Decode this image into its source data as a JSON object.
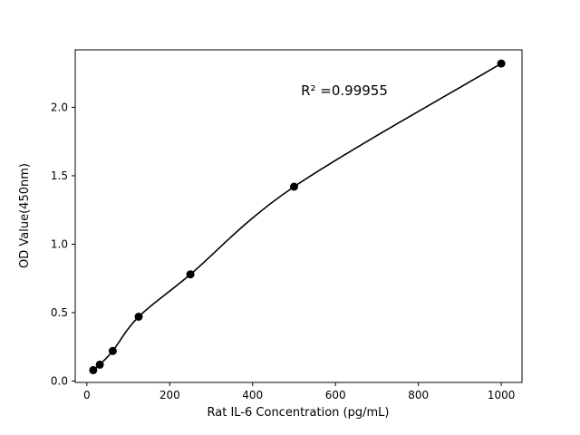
{
  "chart_data": {
    "type": "scatter",
    "title": "",
    "xlabel": "Rat IL-6 Concentration (pg/mL)",
    "ylabel": "OD Value(450nm)",
    "annotation": "R² =0.99955",
    "x": [
      15.6,
      31.25,
      62.5,
      125,
      250,
      500,
      1000
    ],
    "y": [
      0.08,
      0.12,
      0.22,
      0.47,
      0.78,
      1.42,
      2.32
    ],
    "fit": "smooth 4-parameter standard curve through points",
    "xticks": [
      0,
      200,
      400,
      600,
      800,
      1000
    ],
    "xtick_labels": [
      "0",
      "200",
      "400",
      "600",
      "800",
      "1000"
    ],
    "yticks": [
      0.0,
      0.5,
      1.0,
      1.5,
      2.0
    ],
    "ytick_labels": [
      "0.0",
      "0.5",
      "1.0",
      "1.5",
      "2.0"
    ],
    "xlim": [
      -28,
      1050
    ],
    "ylim": [
      -0.01,
      2.42
    ],
    "grid": false,
    "legend": "none",
    "marker_color": "#000000",
    "line_color": "#000000",
    "background_color": "#ffffff"
  }
}
